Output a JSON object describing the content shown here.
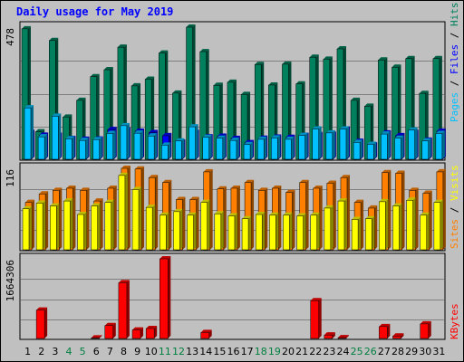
{
  "title": "Daily usage for May 2019",
  "legend": {
    "top": {
      "pages": "Pages",
      "files": "Files",
      "hits": "Hits",
      "sep": " / "
    },
    "middle": {
      "sites": "Sites",
      "visits": "Visits",
      "sep": " / "
    },
    "bottom": {
      "kbytes": "KBytes"
    }
  },
  "colors": {
    "background": "#c0c0c0",
    "hits": "#00805c",
    "files": "#0000ff",
    "pages": "#00c0ff",
    "visits": "#ffff00",
    "sites": "#ff8000",
    "kbytes": "#ff0000",
    "title": "#0000ff",
    "weekday_label": "#000000",
    "weekend_label": "#008040",
    "grid": "#808080"
  },
  "chart_data": [
    {
      "type": "bar",
      "name": "hits-files-pages",
      "y_max_label": "478",
      "ylim": [
        0,
        478
      ],
      "categories": [
        "1",
        "2",
        "3",
        "4",
        "5",
        "6",
        "7",
        "8",
        "9",
        "10",
        "11",
        "12",
        "13",
        "14",
        "15",
        "16",
        "17",
        "18",
        "19",
        "20",
        "21",
        "22",
        "23",
        "24",
        "25",
        "26",
        "27",
        "28",
        "29",
        "30",
        "31"
      ],
      "series": [
        {
          "name": "Hits",
          "values": [
            472,
            102,
            430,
            155,
            215,
            300,
            325,
            406,
            267,
            291,
            385,
            241,
            478,
            390,
            269,
            280,
            236,
            344,
            270,
            345,
            274,
            370,
            363,
            400,
            215,
            194,
            360,
            334,
            365,
            240,
            365
          ]
        },
        {
          "name": "Files",
          "values": [
            100,
            90,
            90,
            78,
            75,
            76,
            110,
            109,
            104,
            99,
            88,
            65,
            100,
            84,
            86,
            78,
            63,
            79,
            83,
            82,
            89,
            92,
            93,
            112,
            68,
            55,
            98,
            88,
            100,
            72,
            104
          ]
        },
        {
          "name": "Pages",
          "values": [
            188,
            84,
            158,
            77,
            71,
            74,
            96,
            124,
            97,
            87,
            54,
            69,
            120,
            82,
            79,
            71,
            56,
            75,
            80,
            75,
            89,
            112,
            98,
            112,
            64,
            57,
            94,
            79,
            108,
            69,
            96
          ]
        }
      ]
    },
    {
      "type": "bar",
      "name": "sites-visits",
      "y_max_label": "116",
      "ylim": [
        0,
        116
      ],
      "categories": [
        "1",
        "2",
        "3",
        "4",
        "5",
        "6",
        "7",
        "8",
        "9",
        "10",
        "11",
        "12",
        "13",
        "14",
        "15",
        "16",
        "17",
        "18",
        "19",
        "20",
        "21",
        "22",
        "23",
        "24",
        "25",
        "26",
        "27",
        "28",
        "29",
        "30",
        "31"
      ],
      "series": [
        {
          "name": "Sites",
          "values": [
            68,
            80,
            85,
            88,
            85,
            70,
            88,
            116,
            115,
            103,
            96,
            72,
            72,
            111,
            87,
            88,
            96,
            85,
            88,
            82,
            96,
            88,
            95,
            103,
            68,
            60,
            110,
            109,
            85,
            81,
            111
          ]
        },
        {
          "name": "Visits",
          "values": [
            59,
            67,
            63,
            70,
            51,
            63,
            68,
            106,
            86,
            61,
            50,
            55,
            50,
            68,
            52,
            49,
            45,
            51,
            50,
            50,
            49,
            50,
            60,
            70,
            44,
            45,
            69,
            63,
            71,
            50,
            68
          ]
        }
      ]
    },
    {
      "type": "bar",
      "name": "kbytes",
      "y_max_label": "1664306",
      "ylim": [
        0,
        1664306
      ],
      "categories": [
        "1",
        "2",
        "3",
        "4",
        "5",
        "6",
        "7",
        "8",
        "9",
        "10",
        "11",
        "12",
        "13",
        "14",
        "15",
        "16",
        "17",
        "18",
        "19",
        "20",
        "21",
        "22",
        "23",
        "24",
        "25",
        "26",
        "27",
        "28",
        "29",
        "30",
        "31"
      ],
      "series": [
        {
          "name": "KBytes",
          "values": [
            12000,
            605000,
            18000,
            12000,
            15000,
            30000,
            285000,
            1170000,
            195000,
            225000,
            1664306,
            12000,
            12000,
            142000,
            12000,
            12000,
            12000,
            12000,
            12000,
            12000,
            12000,
            800000,
            90000,
            36000,
            18000,
            12000,
            265000,
            70000,
            12000,
            320000,
            12000
          ]
        }
      ]
    }
  ],
  "weekend_days": [
    "4",
    "5",
    "11",
    "12",
    "18",
    "19",
    "25",
    "26"
  ]
}
